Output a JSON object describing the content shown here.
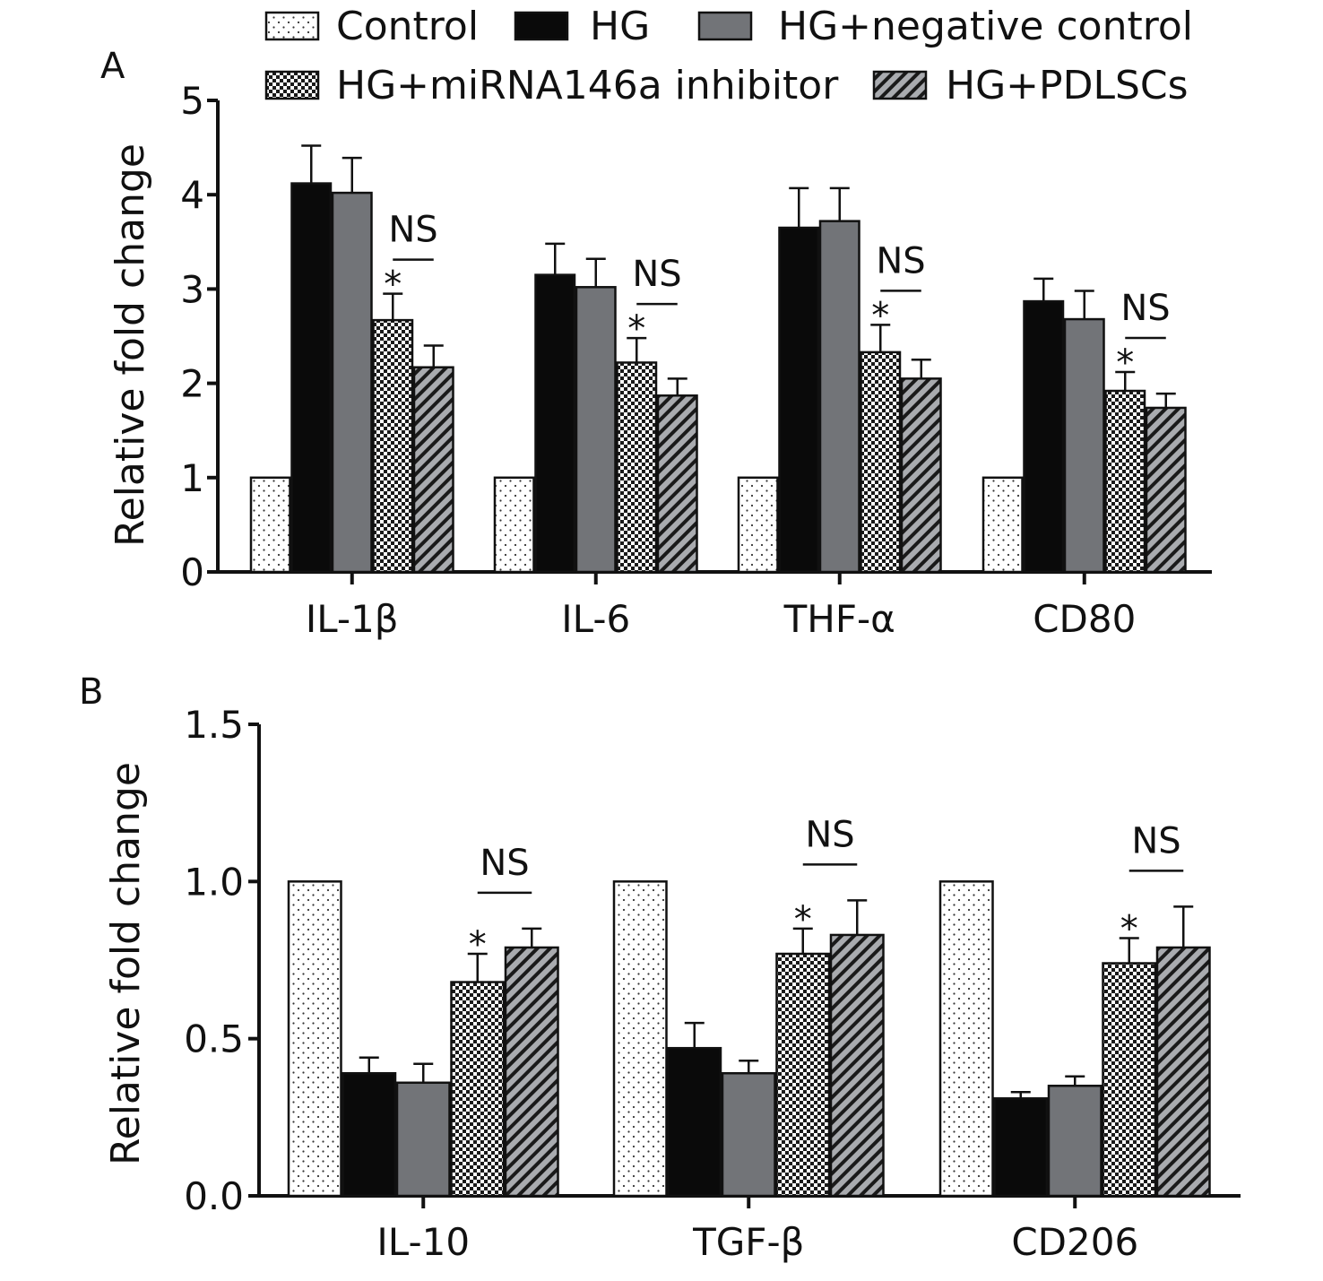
{
  "legend": {
    "items": [
      {
        "label": "Control",
        "pattern": "dots"
      },
      {
        "label": "HG",
        "pattern": "solid-black"
      },
      {
        "label": "HG+negative control",
        "pattern": "solid-gray"
      },
      {
        "label": "HG+miRNA146a inhibitor",
        "pattern": "checker"
      },
      {
        "label": "HG+PDLSCs",
        "pattern": "hatch"
      }
    ]
  },
  "colors": {
    "hg": "#0a0a0a",
    "negative_control": "#727478",
    "dots_bg": "#ffffff",
    "axis": "#111111"
  },
  "annotations": {
    "significance": "*",
    "not_significant": "NS"
  },
  "chart_data": [
    {
      "type": "bar",
      "panel_label": "A",
      "ylabel": "Relative fold change",
      "ylim": [
        0,
        5
      ],
      "yticks": [
        "0",
        "1",
        "2",
        "3",
        "4",
        "5"
      ],
      "ytick_values": [
        0,
        1,
        2,
        3,
        4,
        5
      ],
      "categories": [
        "IL-1β",
        "IL-6",
        "THF-α",
        "CD80"
      ],
      "series": [
        {
          "name": "Control",
          "values": [
            1.0,
            1.0,
            1.0,
            1.0
          ],
          "errors": [
            0,
            0,
            0,
            0
          ]
        },
        {
          "name": "HG",
          "values": [
            4.12,
            3.15,
            3.65,
            2.87
          ],
          "errors": [
            0.4,
            0.33,
            0.42,
            0.24
          ]
        },
        {
          "name": "HG+negative control",
          "values": [
            4.02,
            3.02,
            3.72,
            2.68
          ],
          "errors": [
            0.37,
            0.3,
            0.35,
            0.3
          ]
        },
        {
          "name": "HG+miRNA146a inhibitor",
          "values": [
            2.67,
            2.22,
            2.33,
            1.92
          ],
          "errors": [
            0.28,
            0.26,
            0.29,
            0.2
          ]
        },
        {
          "name": "HG+PDLSCs",
          "values": [
            2.17,
            1.87,
            2.05,
            1.74
          ],
          "errors": [
            0.23,
            0.18,
            0.2,
            0.15
          ]
        }
      ]
    },
    {
      "type": "bar",
      "panel_label": "B",
      "ylabel": "Relative fold change",
      "ylim": [
        0,
        1.5
      ],
      "yticks": [
        "0.0",
        "0.5",
        "1.0",
        "1.5"
      ],
      "ytick_values": [
        0,
        0.5,
        1.0,
        1.5
      ],
      "categories": [
        "IL-10",
        "TGF-β",
        "CD206"
      ],
      "series": [
        {
          "name": "Control",
          "values": [
            1.0,
            1.0,
            1.0
          ],
          "errors": [
            0,
            0,
            0
          ]
        },
        {
          "name": "HG",
          "values": [
            0.39,
            0.47,
            0.31
          ],
          "errors": [
            0.05,
            0.08,
            0.02
          ]
        },
        {
          "name": "HG+negative control",
          "values": [
            0.36,
            0.39,
            0.35
          ],
          "errors": [
            0.06,
            0.04,
            0.03
          ]
        },
        {
          "name": "HG+miRNA146a inhibitor",
          "values": [
            0.68,
            0.77,
            0.74
          ],
          "errors": [
            0.09,
            0.08,
            0.08
          ]
        },
        {
          "name": "HG+PDLSCs",
          "values": [
            0.79,
            0.83,
            0.79
          ],
          "errors": [
            0.06,
            0.11,
            0.13
          ]
        }
      ]
    }
  ]
}
